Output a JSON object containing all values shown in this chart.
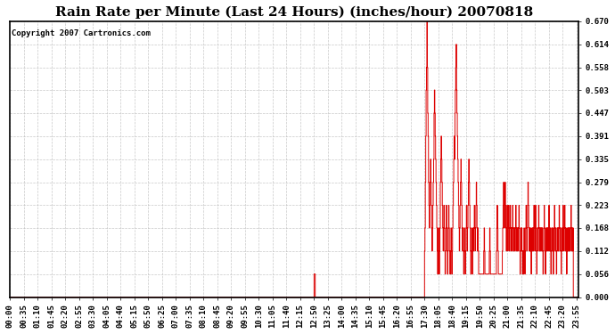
{
  "title": "Rain Rate per Minute (Last 24 Hours) (inches/hour) 20070818",
  "copyright_text": "Copyright 2007 Cartronics.com",
  "line_color": "#dd0000",
  "background_color": "#ffffff",
  "plot_bg_color": "#ffffff",
  "grid_color": "#bbbbbb",
  "ylim": [
    0.0,
    0.67
  ],
  "yticks": [
    0.0,
    0.056,
    0.112,
    0.168,
    0.223,
    0.279,
    0.335,
    0.391,
    0.447,
    0.503,
    0.558,
    0.614,
    0.67
  ],
  "title_fontsize": 11,
  "tick_fontsize": 6.5,
  "copyright_fontsize": 6.5
}
